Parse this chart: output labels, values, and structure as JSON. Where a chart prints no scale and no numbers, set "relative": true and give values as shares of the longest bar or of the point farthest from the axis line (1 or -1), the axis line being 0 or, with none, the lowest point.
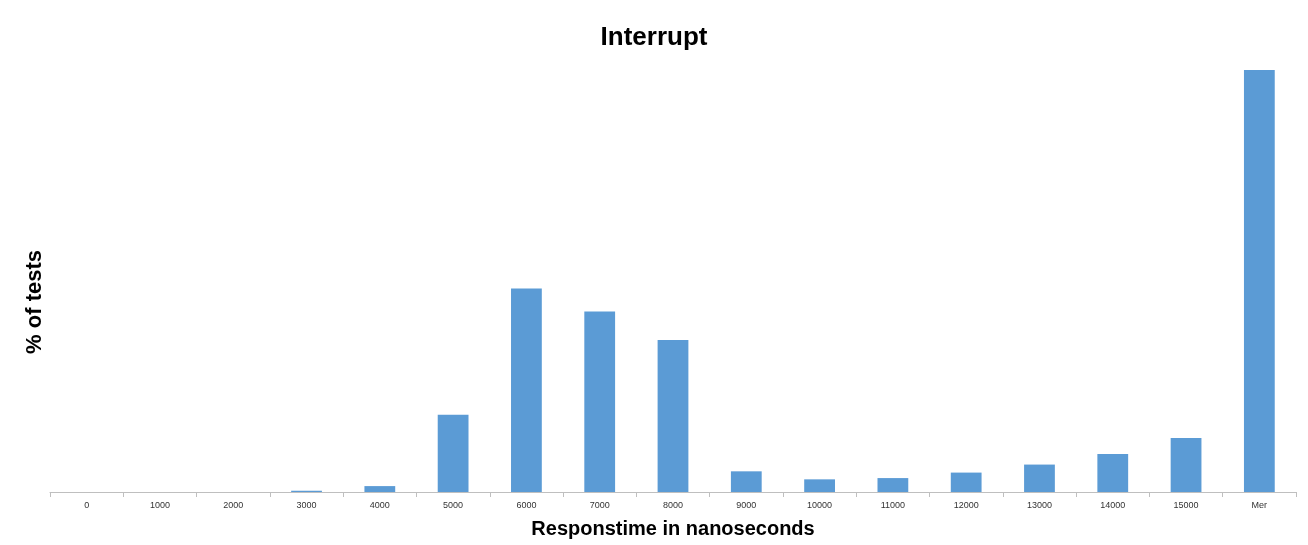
{
  "chart_data": {
    "type": "bar",
    "title": "Interrupt",
    "xlabel": "Responstime in nanoseconds",
    "ylabel": "% of tests",
    "relative": true,
    "categories": [
      "0",
      "1000",
      "2000",
      "3000",
      "4000",
      "5000",
      "6000",
      "7000",
      "8000",
      "9000",
      "10000",
      "11000",
      "12000",
      "13000",
      "14000",
      "15000",
      "Mer"
    ],
    "values": [
      0,
      0,
      0,
      0.003,
      0.014,
      0.183,
      0.482,
      0.428,
      0.36,
      0.049,
      0.03,
      0.033,
      0.046,
      0.065,
      0.09,
      0.128,
      1
    ],
    "color": "#5b9bd5"
  }
}
